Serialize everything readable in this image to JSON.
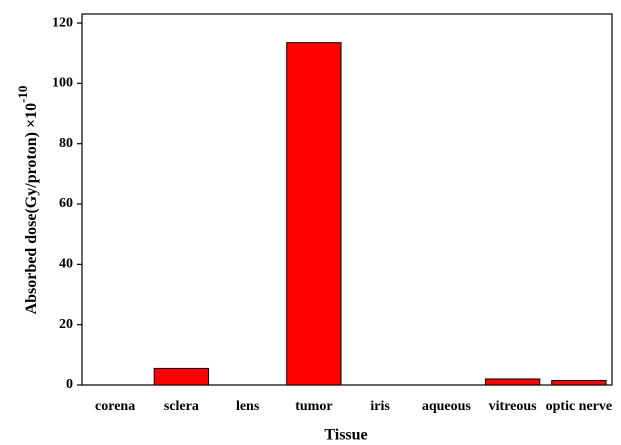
{
  "chart_data": {
    "type": "bar",
    "xlabel": "Tissue",
    "ylabel": "Absorbed dose(Gy/proton) ×10",
    "ylabel_exponent": "-10",
    "categories": [
      "corena",
      "sclera",
      "lens",
      "tumor",
      "iris",
      "aqueous",
      "vitreous",
      "optic nerve"
    ],
    "values": [
      0,
      5.5,
      0,
      113.5,
      0,
      0,
      2,
      1.5
    ],
    "color": "#ff0000",
    "ylim": [
      0,
      123
    ],
    "yticks": [
      0,
      20,
      40,
      60,
      80,
      100,
      120
    ],
    "grid": false
  }
}
